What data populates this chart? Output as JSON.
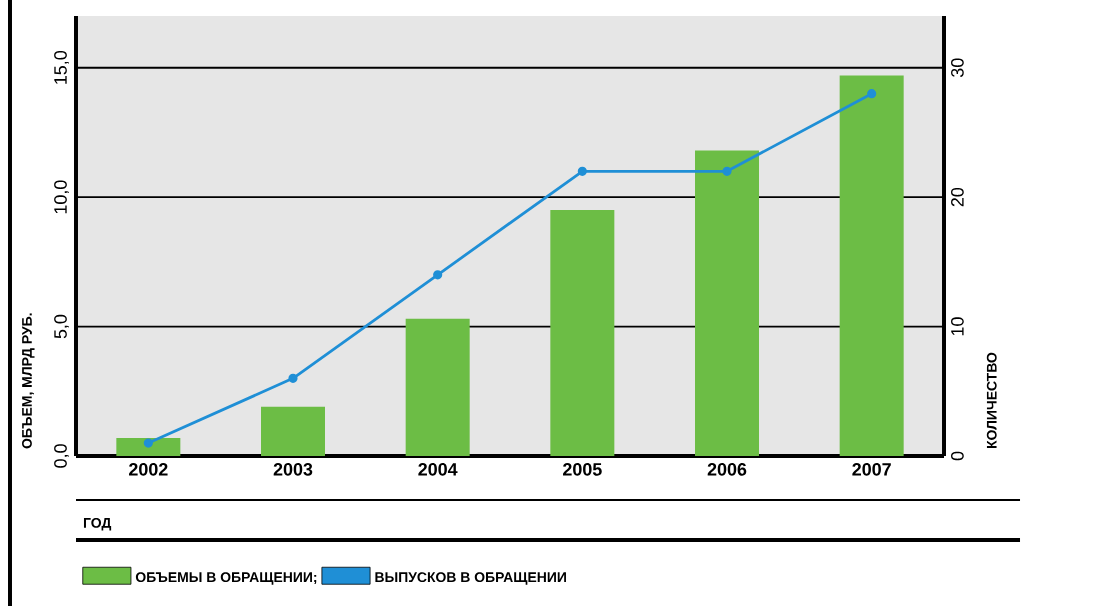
{
  "chart_data": {
    "type": "bar",
    "categories": [
      "2002",
      "2003",
      "2004",
      "2005",
      "2006",
      "2007"
    ],
    "xlabel": "ГОД",
    "ylabel": "ОБЪЕМ, МЛРД РУБ.",
    "y2label": "КОЛИЧЕСТВО",
    "series": [
      {
        "name": "ОБЪЕМЫ В ОБРАЩЕНИИ;",
        "color": "#6cbd45",
        "values": [
          0.7,
          1.9,
          5.3,
          9.5,
          11.8,
          14.7
        ]
      },
      {
        "name": "ВЫПУСКОВ В ОБРАЩЕНИИ",
        "type": "line",
        "axis": "y2",
        "color": "#1f8fd6",
        "marker": "circle",
        "values": [
          1,
          6,
          14,
          22,
          22,
          28
        ]
      }
    ],
    "ylim": [
      0,
      17
    ],
    "yticks": [
      {
        "value": 0,
        "label": "0,0"
      },
      {
        "value": 5,
        "label": "5,0"
      },
      {
        "value": 10,
        "label": "10,0"
      },
      {
        "value": 15,
        "label": "15,0"
      }
    ],
    "y2lim": [
      0,
      34
    ],
    "y2ticks": [
      0,
      10,
      20,
      30
    ],
    "grid": "y",
    "legend": "bottom"
  }
}
